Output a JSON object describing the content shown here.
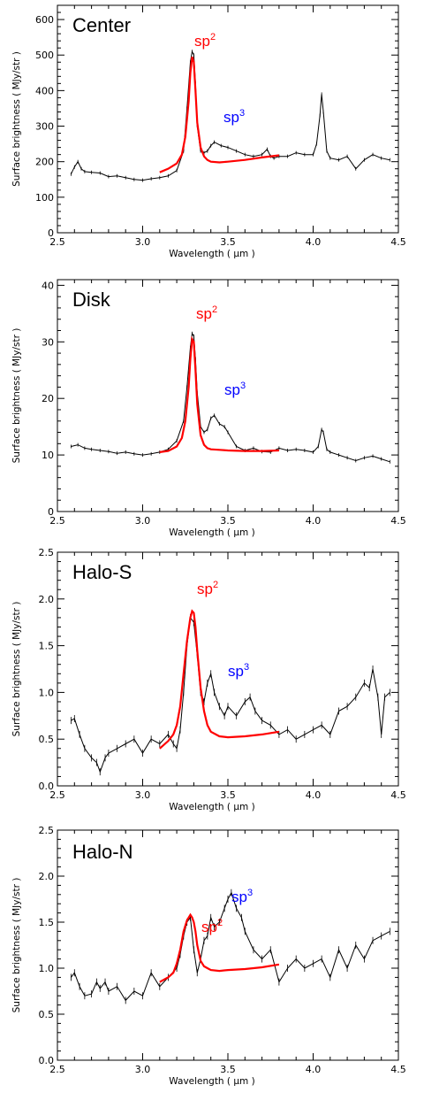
{
  "figure": {
    "panels": [
      {
        "title": "Center",
        "sp2_text": "sp",
        "sp2_sup": "2",
        "sp3_text": "sp",
        "sp3_sup": "3"
      },
      {
        "title": "Disk",
        "sp2_text": "sp",
        "sp2_sup": "2",
        "sp3_text": "sp",
        "sp3_sup": "3"
      },
      {
        "title": "Halo-S",
        "sp2_text": "sp",
        "sp2_sup": "2",
        "sp3_text": "sp",
        "sp3_sup": "3"
      },
      {
        "title": "Halo-N",
        "sp2_text": "sp",
        "sp2_sup": "2",
        "sp3_text": "sp",
        "sp3_sup": "3"
      }
    ]
  },
  "chart_data": [
    {
      "type": "line",
      "title": "Center",
      "xlabel": "Wavelength ( μm )",
      "ylabel": "Surface brightness ( MJy/str )",
      "xlim": [
        2.5,
        4.5
      ],
      "ylim": [
        0,
        640
      ],
      "xticks": [
        2.5,
        3.0,
        3.5,
        4.0,
        4.5
      ],
      "xticklabels": [
        "2.5",
        "3.0",
        "3.5",
        "4.0",
        "4.5"
      ],
      "yticks": [
        0,
        100,
        200,
        300,
        400,
        500,
        600
      ],
      "yticklabels": [
        "0",
        "100",
        "200",
        "300",
        "400",
        "500",
        "600"
      ],
      "colors": {
        "data": "#000000",
        "sp2": "#ff0000",
        "sp3": "#0000ff"
      },
      "annotations": [
        {
          "text": "sp2",
          "color": "#ff0000"
        },
        {
          "text": "sp3",
          "color": "#0000ff"
        }
      ],
      "series": [
        {
          "x": [
            2.58,
            2.6,
            2.62,
            2.64,
            2.66,
            2.7,
            2.75,
            2.8,
            2.85,
            2.9,
            2.95,
            3.0,
            3.05,
            3.1,
            3.15,
            3.2,
            3.24,
            3.26,
            3.28,
            3.29,
            3.3,
            3.31,
            3.32,
            3.34,
            3.36,
            3.38,
            3.4,
            3.42,
            3.46,
            3.5,
            3.55,
            3.6,
            3.65,
            3.7,
            3.73,
            3.75,
            3.77,
            3.8,
            3.85,
            3.9,
            3.95,
            4.0,
            4.02,
            4.04,
            4.05,
            4.06,
            4.08,
            4.1,
            4.15,
            4.2,
            4.25,
            4.3,
            4.35,
            4.4,
            4.45
          ],
          "y": [
            165,
            185,
            200,
            180,
            172,
            170,
            168,
            158,
            160,
            155,
            150,
            148,
            152,
            155,
            160,
            175,
            230,
            350,
            480,
            510,
            500,
            420,
            300,
            230,
            225,
            230,
            245,
            255,
            245,
            240,
            230,
            220,
            215,
            220,
            235,
            215,
            210,
            215,
            215,
            225,
            220,
            220,
            250,
            330,
            390,
            340,
            230,
            210,
            205,
            215,
            180,
            205,
            220,
            210,
            205
          ]
        },
        {
          "x": [
            3.1,
            3.15,
            3.2,
            3.23,
            3.25,
            3.27,
            3.28,
            3.29,
            3.3,
            3.31,
            3.32,
            3.34,
            3.36,
            3.38,
            3.4,
            3.45,
            3.5,
            3.6,
            3.7,
            3.8
          ],
          "y": [
            170,
            180,
            195,
            220,
            270,
            370,
            450,
            495,
            480,
            400,
            310,
            240,
            215,
            205,
            200,
            198,
            200,
            205,
            212,
            218
          ]
        }
      ]
    },
    {
      "type": "line",
      "title": "Disk",
      "xlabel": "Wavelength ( μm )",
      "ylabel": "Surface brightness ( MJy/str )",
      "xlim": [
        2.5,
        4.5
      ],
      "ylim": [
        0,
        41
      ],
      "xticks": [
        2.5,
        3.0,
        3.5,
        4.0,
        4.5
      ],
      "xticklabels": [
        "2.5",
        "3.0",
        "3.5",
        "4.0",
        "4.5"
      ],
      "yticks": [
        0,
        10,
        20,
        30,
        40
      ],
      "yticklabels": [
        "0",
        "10",
        "20",
        "30",
        "40"
      ],
      "colors": {
        "data": "#000000",
        "sp2": "#ff0000",
        "sp3": "#0000ff"
      },
      "annotations": [
        {
          "text": "sp2",
          "color": "#ff0000"
        },
        {
          "text": "sp3",
          "color": "#0000ff"
        }
      ],
      "series": [
        {
          "x": [
            2.58,
            2.62,
            2.66,
            2.7,
            2.75,
            2.8,
            2.85,
            2.9,
            2.95,
            3.0,
            3.05,
            3.1,
            3.15,
            3.2,
            3.24,
            3.26,
            3.28,
            3.29,
            3.3,
            3.31,
            3.32,
            3.34,
            3.36,
            3.38,
            3.4,
            3.42,
            3.45,
            3.48,
            3.5,
            3.55,
            3.6,
            3.65,
            3.7,
            3.75,
            3.8,
            3.85,
            3.9,
            3.95,
            4.0,
            4.03,
            4.05,
            4.06,
            4.08,
            4.1,
            4.15,
            4.2,
            4.25,
            4.3,
            4.35,
            4.4,
            4.45
          ],
          "y": [
            11.5,
            11.8,
            11.2,
            11.0,
            10.8,
            10.6,
            10.3,
            10.5,
            10.2,
            10.0,
            10.2,
            10.5,
            11.0,
            12.5,
            16,
            22,
            29,
            31.5,
            31,
            27,
            21,
            15,
            14,
            14.5,
            16.5,
            17,
            15.5,
            15,
            14,
            11.5,
            10.8,
            11.2,
            10.6,
            10.5,
            11.2,
            10.8,
            11.0,
            10.8,
            10.5,
            11.5,
            14.5,
            14.0,
            11.0,
            10.5,
            10.0,
            9.5,
            9.0,
            9.5,
            9.8,
            9.3,
            8.8
          ]
        },
        {
          "x": [
            3.1,
            3.15,
            3.2,
            3.23,
            3.25,
            3.27,
            3.28,
            3.29,
            3.3,
            3.31,
            3.32,
            3.34,
            3.36,
            3.38,
            3.4,
            3.45,
            3.5,
            3.6,
            3.7,
            3.8
          ],
          "y": [
            10.5,
            10.7,
            11.5,
            13,
            16,
            22,
            27,
            30.5,
            30,
            25,
            19,
            13.5,
            11.8,
            11.2,
            11.0,
            10.9,
            10.8,
            10.7,
            10.7,
            10.8
          ]
        }
      ]
    },
    {
      "type": "line",
      "title": "Halo-S",
      "xlabel": "Wavelength ( μm )",
      "ylabel": "Surface brightness ( MJy/str )",
      "xlim": [
        2.5,
        4.5
      ],
      "ylim": [
        0,
        2.5
      ],
      "xticks": [
        2.5,
        3.0,
        3.5,
        4.0,
        4.5
      ],
      "xticklabels": [
        "2.5",
        "3.0",
        "3.5",
        "4.0",
        "4.5"
      ],
      "yticks": [
        0.0,
        0.5,
        1.0,
        1.5,
        2.0,
        2.5
      ],
      "yticklabels": [
        "0.0",
        "0.5",
        "1.0",
        "1.5",
        "2.0",
        "2.5"
      ],
      "colors": {
        "data": "#000000",
        "sp2": "#ff0000",
        "sp3": "#0000ff"
      },
      "annotations": [
        {
          "text": "sp2",
          "color": "#ff0000"
        },
        {
          "text": "sp3",
          "color": "#0000ff"
        }
      ],
      "series": [
        {
          "x": [
            2.58,
            2.6,
            2.63,
            2.66,
            2.7,
            2.73,
            2.75,
            2.78,
            2.8,
            2.85,
            2.9,
            2.95,
            3.0,
            3.05,
            3.1,
            3.15,
            3.18,
            3.2,
            3.22,
            3.24,
            3.26,
            3.28,
            3.3,
            3.32,
            3.34,
            3.36,
            3.38,
            3.4,
            3.42,
            3.45,
            3.48,
            3.5,
            3.55,
            3.6,
            3.63,
            3.66,
            3.7,
            3.75,
            3.8,
            3.85,
            3.9,
            3.95,
            4.0,
            4.05,
            4.1,
            4.15,
            4.2,
            4.25,
            4.3,
            4.33,
            4.35,
            4.38,
            4.4,
            4.42,
            4.45
          ],
          "y": [
            0.7,
            0.72,
            0.55,
            0.4,
            0.3,
            0.25,
            0.15,
            0.3,
            0.35,
            0.4,
            0.45,
            0.5,
            0.35,
            0.5,
            0.45,
            0.55,
            0.45,
            0.4,
            0.6,
            1.0,
            1.5,
            1.8,
            1.75,
            1.4,
            1.0,
            0.9,
            1.1,
            1.2,
            1.0,
            0.85,
            0.75,
            0.85,
            0.75,
            0.9,
            0.95,
            0.8,
            0.7,
            0.65,
            0.55,
            0.6,
            0.5,
            0.55,
            0.6,
            0.65,
            0.55,
            0.8,
            0.85,
            0.95,
            1.1,
            1.05,
            1.25,
            0.95,
            0.55,
            0.95,
            1.0
          ]
        },
        {
          "x": [
            3.1,
            3.15,
            3.18,
            3.2,
            3.22,
            3.24,
            3.26,
            3.28,
            3.29,
            3.3,
            3.31,
            3.32,
            3.34,
            3.36,
            3.38,
            3.4,
            3.45,
            3.5,
            3.6,
            3.7,
            3.8
          ],
          "y": [
            0.4,
            0.48,
            0.55,
            0.65,
            0.85,
            1.2,
            1.55,
            1.8,
            1.87,
            1.85,
            1.7,
            1.45,
            1.05,
            0.8,
            0.65,
            0.58,
            0.53,
            0.52,
            0.53,
            0.55,
            0.58
          ]
        }
      ]
    },
    {
      "type": "line",
      "title": "Halo-N",
      "xlabel": "Wavelength ( μm )",
      "ylabel": "Surface brightness ( MJy/str )",
      "xlim": [
        2.5,
        4.5
      ],
      "ylim": [
        0,
        2.5
      ],
      "xticks": [
        2.5,
        3.0,
        3.5,
        4.0,
        4.5
      ],
      "xticklabels": [
        "2.5",
        "3.0",
        "3.5",
        "4.0",
        "4.5"
      ],
      "yticks": [
        0.0,
        0.5,
        1.0,
        1.5,
        2.0,
        2.5
      ],
      "yticklabels": [
        "0.0",
        "0.5",
        "1.0",
        "1.5",
        "2.0",
        "2.5"
      ],
      "colors": {
        "data": "#000000",
        "sp2": "#ff0000",
        "sp3": "#0000ff"
      },
      "annotations": [
        {
          "text": "sp2",
          "color": "#ff0000"
        },
        {
          "text": "sp3",
          "color": "#0000ff"
        }
      ],
      "series": [
        {
          "x": [
            2.58,
            2.6,
            2.63,
            2.66,
            2.7,
            2.73,
            2.75,
            2.78,
            2.8,
            2.85,
            2.9,
            2.95,
            3.0,
            3.05,
            3.1,
            3.15,
            3.2,
            3.22,
            3.24,
            3.26,
            3.28,
            3.3,
            3.32,
            3.34,
            3.36,
            3.38,
            3.4,
            3.42,
            3.45,
            3.48,
            3.5,
            3.52,
            3.55,
            3.58,
            3.6,
            3.65,
            3.7,
            3.75,
            3.8,
            3.85,
            3.9,
            3.95,
            4.0,
            4.05,
            4.1,
            4.15,
            4.2,
            4.25,
            4.3,
            4.35,
            4.4,
            4.45
          ],
          "y": [
            0.9,
            0.95,
            0.8,
            0.7,
            0.72,
            0.85,
            0.78,
            0.85,
            0.75,
            0.8,
            0.65,
            0.75,
            0.7,
            0.95,
            0.8,
            0.9,
            1.0,
            1.15,
            1.35,
            1.5,
            1.55,
            1.2,
            0.95,
            1.1,
            1.3,
            1.35,
            1.55,
            1.45,
            1.5,
            1.65,
            1.75,
            1.82,
            1.65,
            1.55,
            1.4,
            1.2,
            1.1,
            1.2,
            0.85,
            1.0,
            1.1,
            1.0,
            1.05,
            1.1,
            0.9,
            1.2,
            1.0,
            1.25,
            1.1,
            1.3,
            1.35,
            1.4
          ]
        },
        {
          "x": [
            3.1,
            3.15,
            3.18,
            3.2,
            3.22,
            3.24,
            3.26,
            3.28,
            3.29,
            3.3,
            3.31,
            3.32,
            3.34,
            3.36,
            3.38,
            3.4,
            3.45,
            3.5,
            3.6,
            3.7,
            3.8
          ],
          "y": [
            0.85,
            0.9,
            0.95,
            1.05,
            1.2,
            1.4,
            1.52,
            1.58,
            1.55,
            1.5,
            1.4,
            1.25,
            1.08,
            1.02,
            1.0,
            0.98,
            0.97,
            0.98,
            0.99,
            1.01,
            1.04
          ]
        }
      ]
    }
  ]
}
